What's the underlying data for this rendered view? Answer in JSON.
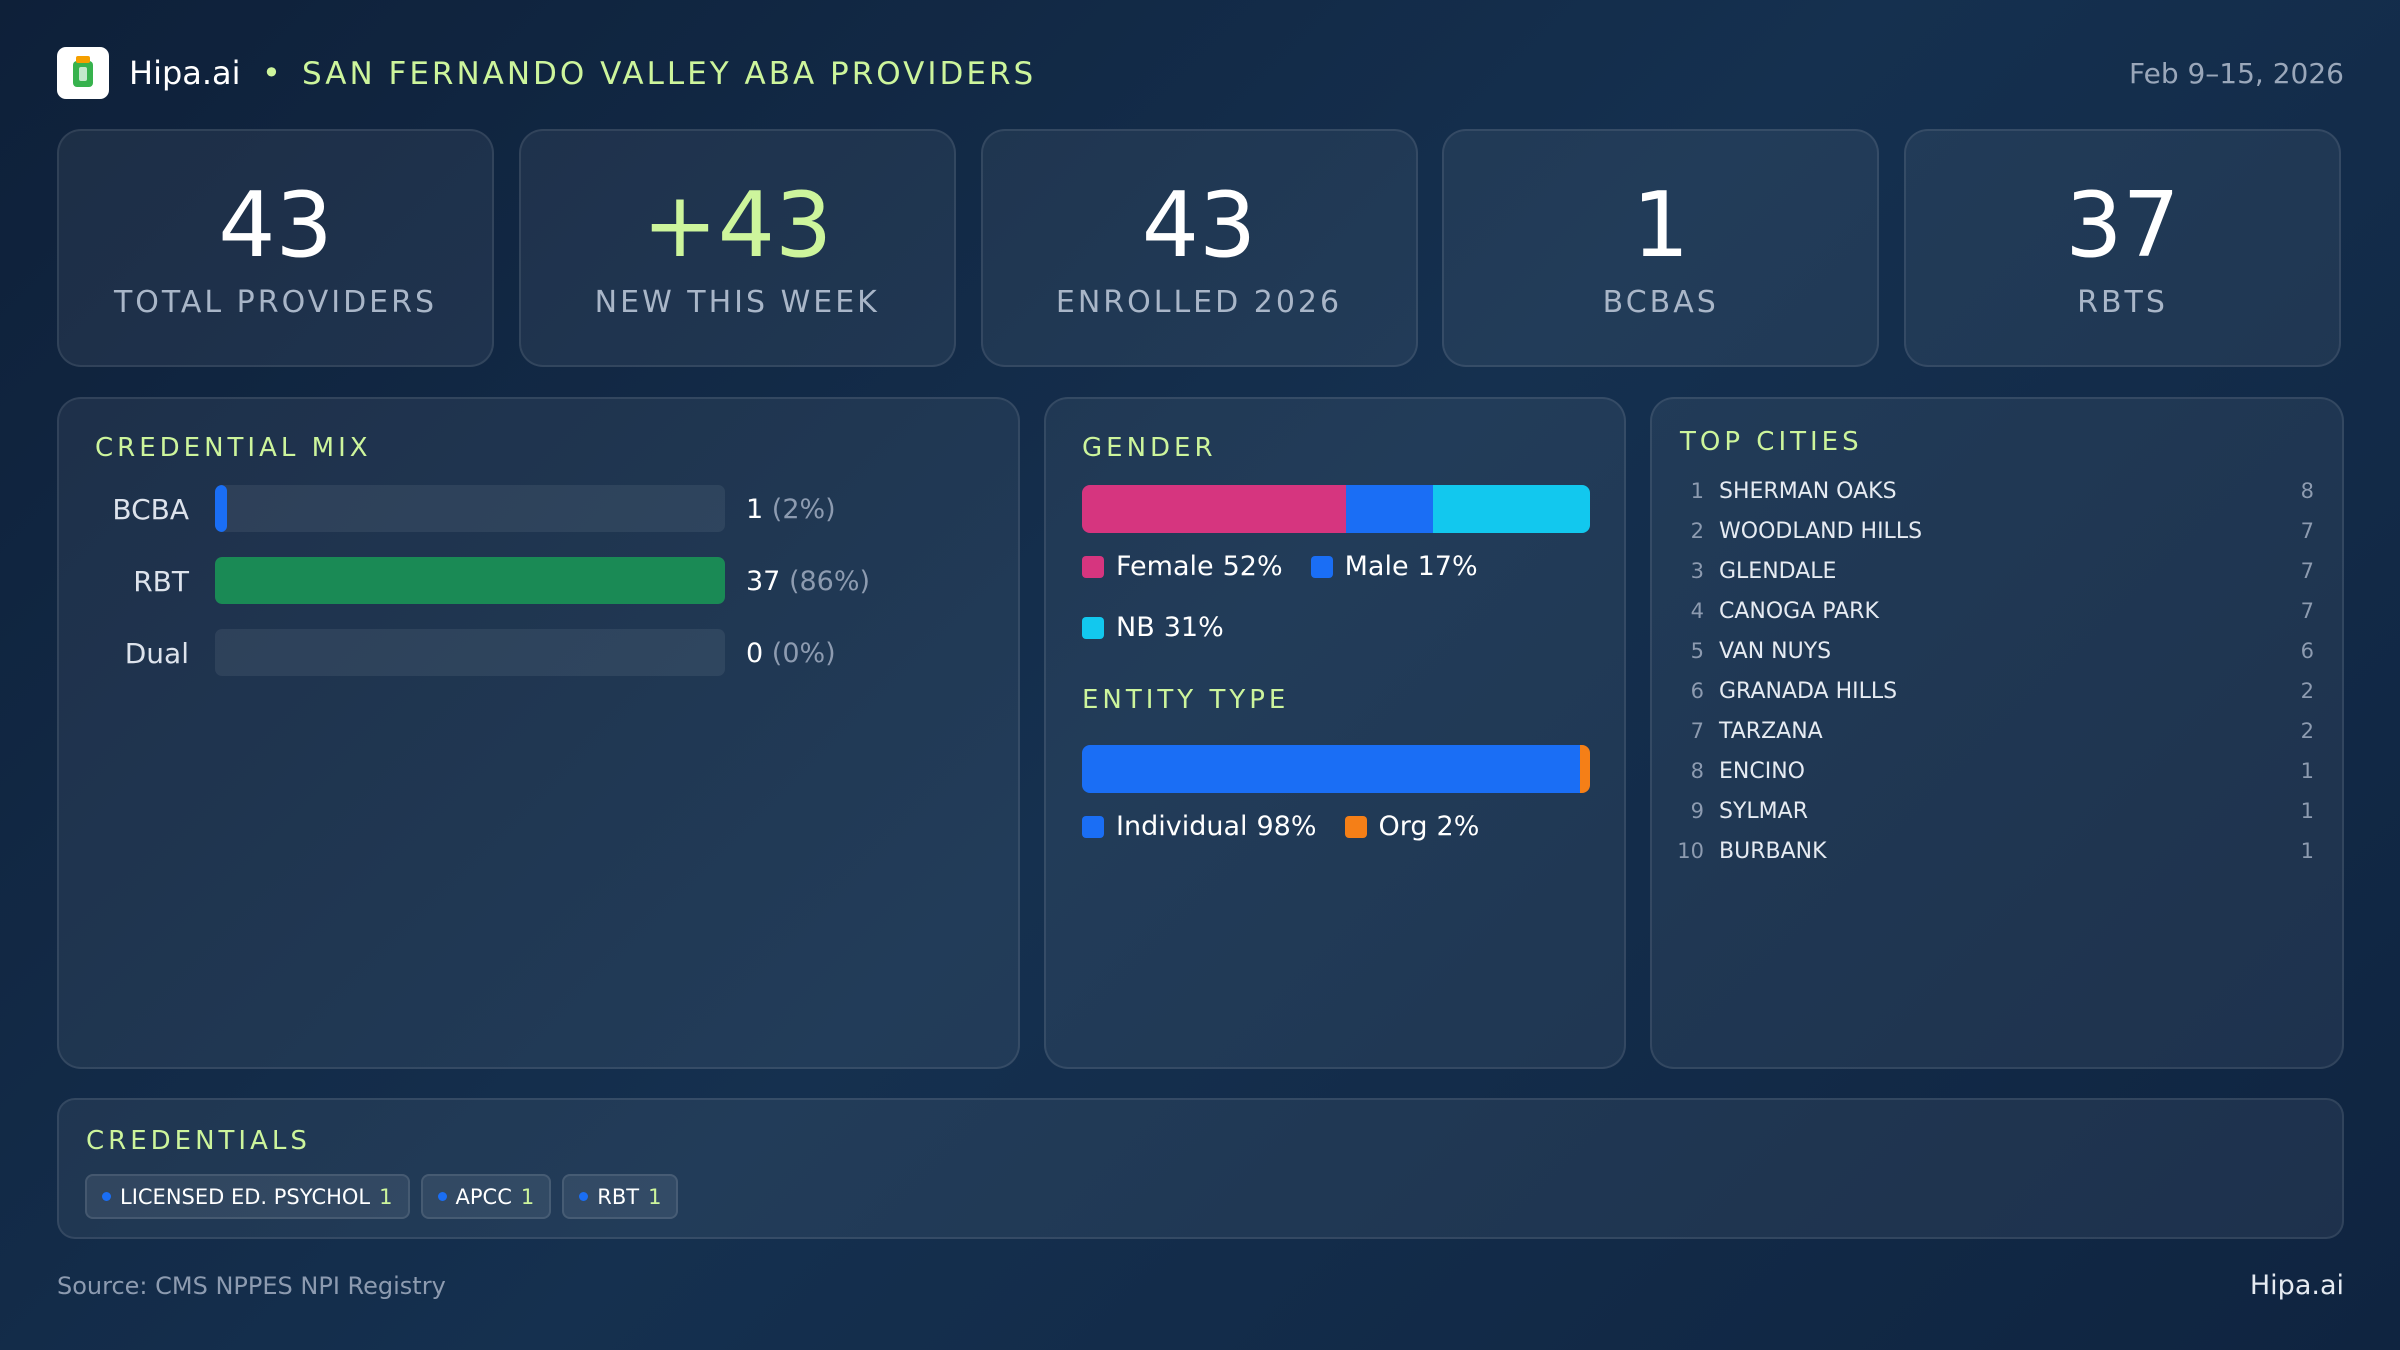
{
  "header": {
    "brand": "Hipa.ai",
    "title": "SAN FERNANDO VALLEY ABA PROVIDERS",
    "date": "Feb 9–15, 2026"
  },
  "kpis": [
    {
      "value": "43",
      "label": "TOTAL PROVIDERS"
    },
    {
      "value": "+43",
      "label": "NEW THIS WEEK"
    },
    {
      "value": "43",
      "label": "ENROLLED 2026"
    },
    {
      "value": "1",
      "label": "BCBAS"
    },
    {
      "value": "37",
      "label": "RBTS"
    }
  ],
  "credential_mix": {
    "title": "CREDENTIAL MIX",
    "rows": [
      {
        "label": "BCBA",
        "count": 1,
        "percent": 2,
        "percent_label": "(2%)",
        "color": "#1a6ef5"
      },
      {
        "label": "RBT",
        "count": 37,
        "percent": 86,
        "percent_label": "(86%)",
        "color": "#1a8a55"
      },
      {
        "label": "Dual",
        "count": 0,
        "percent": 0,
        "percent_label": "(0%)",
        "color": "#1a6ef5"
      }
    ]
  },
  "gender": {
    "title": "GENDER",
    "segments": [
      {
        "name": "Female",
        "value": 52,
        "value_label": "52%",
        "color": "#d6357f"
      },
      {
        "name": "Male",
        "value": 17,
        "value_label": "17%",
        "color": "#1a6ef5"
      },
      {
        "name": "NB",
        "value": 31,
        "value_label": "31%",
        "color": "#12c8ee"
      }
    ]
  },
  "entity_type": {
    "title": "ENTITY TYPE",
    "segments": [
      {
        "name": "Individual",
        "value": 98,
        "value_label": "98%",
        "color": "#1a6ef5"
      },
      {
        "name": "Org",
        "value": 2,
        "value_label": "2%",
        "color": "#f57f17"
      }
    ]
  },
  "top_cities": {
    "title": "TOP CITIES",
    "rows": [
      {
        "rank": 1,
        "name": "SHERMAN OAKS",
        "count": 8
      },
      {
        "rank": 2,
        "name": "WOODLAND HILLS",
        "count": 7
      },
      {
        "rank": 3,
        "name": "GLENDALE",
        "count": 7
      },
      {
        "rank": 4,
        "name": "CANOGA PARK",
        "count": 7
      },
      {
        "rank": 5,
        "name": "VAN NUYS",
        "count": 6
      },
      {
        "rank": 6,
        "name": "GRANADA HILLS",
        "count": 2
      },
      {
        "rank": 7,
        "name": "TARZANA",
        "count": 2
      },
      {
        "rank": 8,
        "name": "ENCINO",
        "count": 1
      },
      {
        "rank": 9,
        "name": "SYLMAR",
        "count": 1
      },
      {
        "rank": 10,
        "name": "BURBANK",
        "count": 1
      }
    ]
  },
  "credentials": {
    "title": "CREDENTIALS",
    "chips": [
      {
        "name": "LICENSED ED. PSYCHOL",
        "count": 1
      },
      {
        "name": "APCC",
        "count": 1
      },
      {
        "name": "RBT",
        "count": 1
      }
    ]
  },
  "footer": {
    "source": "Source: CMS NPPES NPI Registry",
    "brand": "Hipa.ai"
  }
}
